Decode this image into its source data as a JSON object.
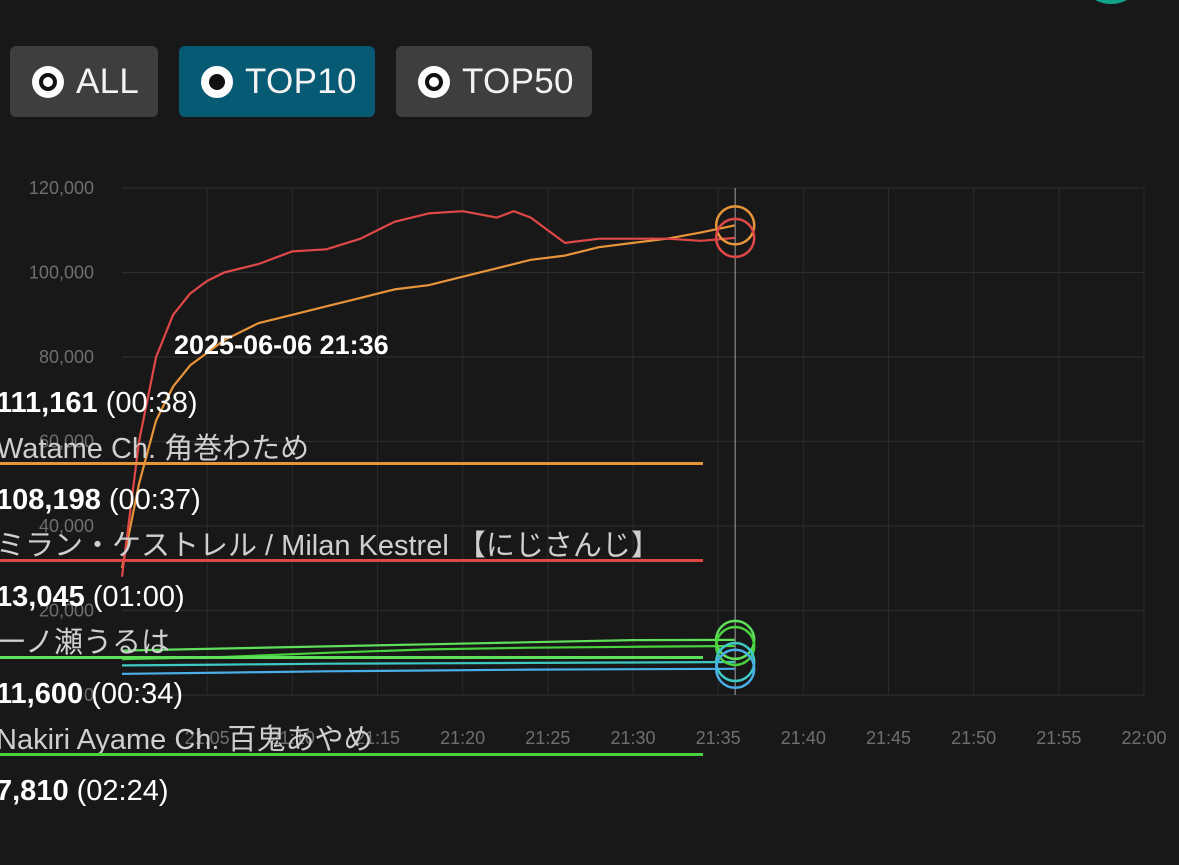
{
  "filters": [
    {
      "label": "ALL",
      "selected": false
    },
    {
      "label": "TOP10",
      "selected": true
    },
    {
      "label": "TOP50",
      "selected": false
    }
  ],
  "colors": {
    "background": "#181818",
    "active_filter": "#075a73",
    "inactive_filter": "#3e3e3e",
    "series_orange": "#e8953a",
    "series_red": "#e04848",
    "series_green": "#49d23e",
    "series_green_light": "#5fe05a",
    "series_teal": "#3ec9c4",
    "series_blue": "#4aaee8"
  },
  "tooltip": {
    "title": "2025-06-06 21:36",
    "entries": [
      {
        "value": "111,161",
        "duration": "(00:38)",
        "name": "Watame Ch. 角巻わため",
        "color": "#e8953a"
      },
      {
        "value": "108,198",
        "duration": "(00:37)",
        "name": "ミラン・ケストレル / Milan Kestrel 【にじさんじ】",
        "color": "#e04848"
      },
      {
        "value": "13,045",
        "duration": "(01:00)",
        "name": "一ノ瀬うるは",
        "color": "#5fe05a"
      },
      {
        "value": "11,600",
        "duration": "(00:34)",
        "name": "Nakiri Ayame Ch. 百鬼あやめ",
        "color": "#49d23e"
      },
      {
        "value": "7,810",
        "duration": "(02:24)",
        "name": "",
        "color": "#3ec9c4"
      }
    ]
  },
  "chart_data": {
    "type": "line",
    "x_ticks": [
      "21:05",
      "21:10",
      "21:15",
      "21:20",
      "21:25",
      "21:30",
      "21:35",
      "21:40",
      "21:45",
      "21:50",
      "21:55",
      "22:00"
    ],
    "y_ticks": [
      "120,000",
      "100,000",
      "80,000",
      "60,000",
      "40,000",
      "20,000",
      "0"
    ],
    "xlim": [
      "21:00",
      "22:00"
    ],
    "ylim": [
      0,
      120000
    ],
    "cursor_x": "21:36",
    "grid": true,
    "series": [
      {
        "color": "#e8953a",
        "x": [
          "21:00",
          "21:01",
          "21:02",
          "21:03",
          "21:04",
          "21:05",
          "21:06",
          "21:08",
          "21:10",
          "21:12",
          "21:14",
          "21:16",
          "21:18",
          "21:20",
          "21:22",
          "21:24",
          "21:26",
          "21:28",
          "21:30",
          "21:32",
          "21:34",
          "21:36"
        ],
        "values": [
          30000,
          50000,
          65000,
          73000,
          78000,
          81000,
          84000,
          88000,
          90000,
          92000,
          94000,
          96000,
          97000,
          99000,
          101000,
          103000,
          104000,
          106000,
          107000,
          108000,
          109500,
          111161
        ]
      },
      {
        "color": "#e04848",
        "x": [
          "21:00",
          "21:01",
          "21:02",
          "21:03",
          "21:04",
          "21:05",
          "21:06",
          "21:08",
          "21:10",
          "21:12",
          "21:14",
          "21:16",
          "21:18",
          "21:20",
          "21:22",
          "21:23",
          "21:24",
          "21:25",
          "21:26",
          "21:28",
          "21:30",
          "21:32",
          "21:34",
          "21:36"
        ],
        "values": [
          28000,
          60000,
          80000,
          90000,
          95000,
          98000,
          100000,
          102000,
          105000,
          105500,
          108000,
          112000,
          114000,
          114500,
          113000,
          114500,
          113000,
          110000,
          107000,
          108000,
          108000,
          108000,
          107500,
          108198
        ]
      },
      {
        "color": "#5fe05a",
        "x": [
          "21:00",
          "21:06",
          "21:12",
          "21:18",
          "21:24",
          "21:30",
          "21:36"
        ],
        "values": [
          10500,
          11000,
          11500,
          12000,
          12500,
          13000,
          13045
        ]
      },
      {
        "color": "#49d23e",
        "x": [
          "21:00",
          "21:06",
          "21:12",
          "21:18",
          "21:24",
          "21:30",
          "21:36"
        ],
        "values": [
          8500,
          9000,
          10000,
          10800,
          11200,
          11400,
          11600
        ]
      },
      {
        "color": "#3ec9c4",
        "x": [
          "21:00",
          "21:06",
          "21:12",
          "21:18",
          "21:24",
          "21:30",
          "21:36"
        ],
        "values": [
          7000,
          7200,
          7400,
          7500,
          7600,
          7700,
          7810
        ]
      },
      {
        "color": "#4aaee8",
        "x": [
          "21:00",
          "21:06",
          "21:12",
          "21:18",
          "21:24",
          "21:30",
          "21:36"
        ],
        "values": [
          5000,
          5300,
          5600,
          5800,
          6000,
          6100,
          6200
        ]
      }
    ]
  }
}
